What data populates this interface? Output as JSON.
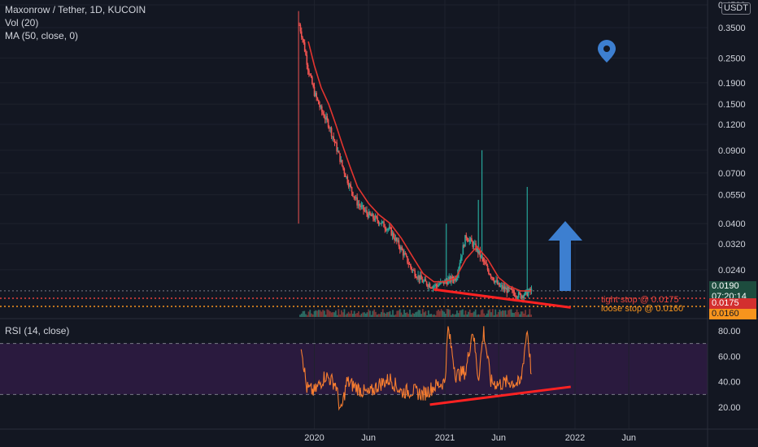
{
  "header": {
    "symbol_title": "Maxonrow / Tether, 1D, KUCOIN",
    "vol_label": "Vol (20)",
    "ma_label": "MA (50, close, 0)",
    "currency": "USDT",
    "rsi_label": "RSI (14, close)"
  },
  "price_axis": {
    "ticks": [
      "0.4500",
      "0.3500",
      "0.2500",
      "0.1900",
      "0.1500",
      "0.1200",
      "0.0900",
      "0.0700",
      "0.0550",
      "0.0400",
      "0.0320",
      "0.0240"
    ],
    "tick_values": [
      0.45,
      0.35,
      0.25,
      0.19,
      0.15,
      0.12,
      0.09,
      0.07,
      0.055,
      0.04,
      0.032,
      0.024
    ],
    "scale": "log"
  },
  "price_tags": {
    "last_price": "0.0190",
    "countdown": "07:20:14",
    "tight_stop": "0.0175",
    "loose_stop": "0.0160"
  },
  "annotations": {
    "tight_stop_text": "tight stop @ 0.0175",
    "loose_stop_text": "loose stop @ 0.0160"
  },
  "rsi_axis": {
    "ticks": [
      "80.00",
      "60.00",
      "40.00",
      "20.00"
    ],
    "tick_values": [
      80,
      60,
      40,
      20
    ],
    "upper_band": 70,
    "lower_band": 30
  },
  "time_axis": {
    "labels": [
      "2020",
      "Jun",
      "2021",
      "Jun",
      "2022",
      "Jun"
    ],
    "dates": [
      "2020-01-01",
      "2020-06-01",
      "2021-01-01",
      "2021-06-01",
      "2022-01-01",
      "2022-06-01"
    ]
  },
  "colors": {
    "background": "#131722",
    "candle_up": "#26a69a",
    "candle_down": "#ef5350",
    "ma_line": "#e3342f",
    "rsi_line": "#f57c30",
    "rsi_band_fill": "#2a1a3e",
    "trendline": "#ff2222",
    "arrow": "#3d7fd0",
    "tight_stop": "#e8423c",
    "loose_stop": "#f7941d",
    "pin": "#3d7fd0"
  },
  "icons": {
    "map_pin": "location-pin-icon",
    "up_arrow": "up-arrow-icon"
  },
  "chart_data": [
    {
      "type": "line",
      "name": "price",
      "title": "Maxonrow / Tether, 1D, KUCOIN",
      "yscale": "log",
      "x": [
        "2019-11-20",
        "2019-12-01",
        "2019-12-15",
        "2020-01-01",
        "2020-01-20",
        "2020-02-10",
        "2020-03-01",
        "2020-03-20",
        "2020-04-10",
        "2020-05-01",
        "2020-06-01",
        "2020-07-01",
        "2020-08-01",
        "2020-09-01",
        "2020-10-01",
        "2020-11-01",
        "2020-12-01",
        "2021-01-01",
        "2021-02-01",
        "2021-03-01",
        "2021-04-01",
        "2021-05-01",
        "2021-06-01",
        "2021-07-01",
        "2021-08-01",
        "2021-09-01"
      ],
      "series": [
        {
          "name": "Maxonrow / Tether",
          "values": [
            0.36,
            0.3,
            0.22,
            0.17,
            0.14,
            0.12,
            0.095,
            0.075,
            0.06,
            0.05,
            0.044,
            0.041,
            0.037,
            0.03,
            0.024,
            0.021,
            0.02,
            0.021,
            0.022,
            0.035,
            0.03,
            0.024,
            0.02,
            0.019,
            0.018,
            0.019
          ]
        },
        {
          "name": "MA (50, close, 0)",
          "values": [
            null,
            null,
            0.3,
            0.23,
            0.18,
            0.15,
            0.12,
            0.095,
            0.075,
            0.06,
            0.05,
            0.044,
            0.04,
            0.034,
            0.028,
            0.023,
            0.021,
            0.021,
            0.022,
            0.027,
            0.031,
            0.027,
            0.022,
            0.02,
            0.019,
            0.019
          ]
        }
      ],
      "spikes": [
        {
          "x": "2021-01-05",
          "high": 0.04
        },
        {
          "x": "2021-04-15",
          "high": 0.09
        },
        {
          "x": "2021-04-05",
          "high": 0.052
        },
        {
          "x": "2021-08-20",
          "high": 0.06
        }
      ],
      "hlines": [
        {
          "label": "tight stop @ 0.0175",
          "value": 0.0175
        },
        {
          "label": "loose stop @ 0.0160",
          "value": 0.016
        }
      ],
      "trendline": {
        "x": [
          "2020-12-01",
          "2021-12-20"
        ],
        "y": [
          0.0193,
          0.0158
        ]
      }
    },
    {
      "type": "line",
      "name": "RSI",
      "title": "RSI (14, close)",
      "ylim": [
        10,
        85
      ],
      "x": [
        "2019-11-25",
        "2019-12-10",
        "2020-01-01",
        "2020-02-01",
        "2020-03-01",
        "2020-03-15",
        "2020-04-01",
        "2020-05-01",
        "2020-06-01",
        "2020-07-01",
        "2020-08-01",
        "2020-09-01",
        "2020-10-01",
        "2020-11-01",
        "2020-12-01",
        "2021-01-01",
        "2021-01-10",
        "2021-02-01",
        "2021-03-01",
        "2021-03-20",
        "2021-04-05",
        "2021-04-20",
        "2021-05-10",
        "2021-06-01",
        "2021-07-01",
        "2021-08-01",
        "2021-08-20",
        "2021-09-01"
      ],
      "values": [
        70,
        35,
        32,
        45,
        38,
        15,
        40,
        35,
        30,
        38,
        42,
        32,
        33,
        30,
        36,
        40,
        82,
        45,
        48,
        82,
        42,
        80,
        40,
        38,
        40,
        38,
        82,
        45
      ],
      "trendline": {
        "x": [
          "2020-11-20",
          "2021-12-20"
        ],
        "y": [
          22,
          36
        ]
      }
    }
  ]
}
